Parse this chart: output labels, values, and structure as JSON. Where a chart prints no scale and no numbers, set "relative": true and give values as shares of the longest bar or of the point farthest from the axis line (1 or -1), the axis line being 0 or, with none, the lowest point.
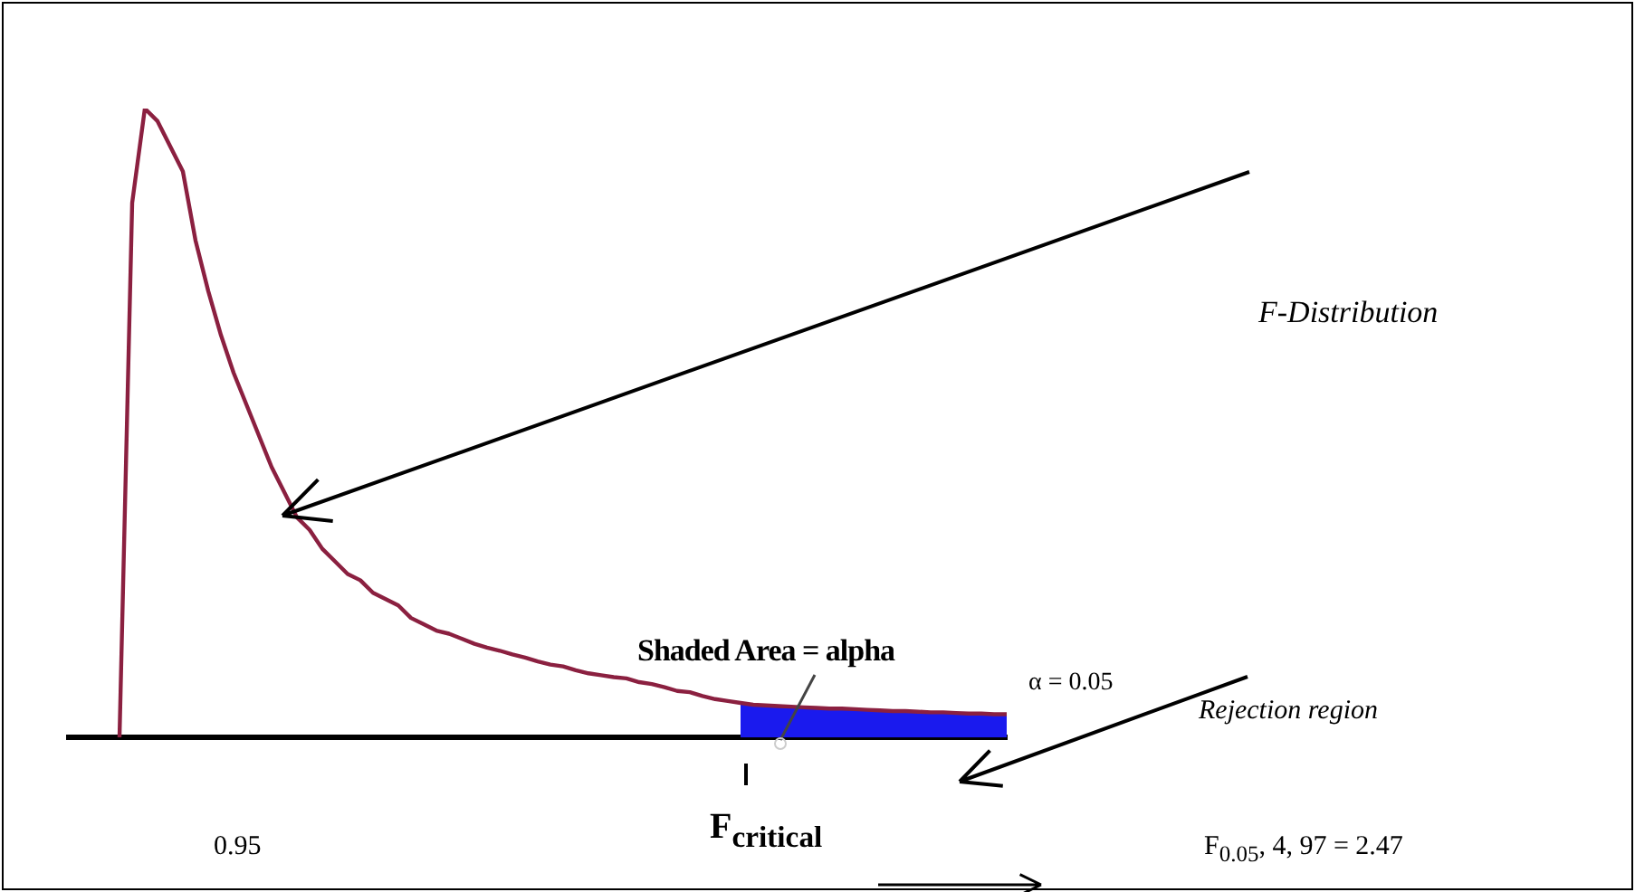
{
  "chart_data": {
    "type": "line",
    "relative": true,
    "legend": false,
    "grid": false,
    "marker": "none",
    "categories": [
      null,
      null,
      null,
      null,
      null,
      null,
      null,
      null,
      null,
      null,
      null,
      null,
      null,
      null,
      null,
      null,
      null,
      null,
      null,
      null,
      null,
      null,
      null,
      null,
      null,
      null,
      null,
      null,
      null,
      null,
      null,
      null,
      null,
      null,
      null,
      null,
      null,
      null,
      null,
      null,
      null,
      null,
      null,
      null,
      null,
      null,
      null,
      null,
      null,
      null,
      null,
      null,
      null,
      null,
      null,
      null,
      null,
      null,
      null,
      null,
      null,
      null,
      null,
      null,
      null,
      null,
      null,
      null,
      null,
      null,
      null,
      null,
      null,
      null,
      null
    ],
    "series": [
      {
        "type": "line",
        "color": "#8b2040",
        "values": [
          null,
          null,
          null,
          null,
          0,
          0.85,
          1.0,
          0.98,
          0.94,
          0.9,
          0.79,
          0.71,
          0.64,
          0.58,
          0.53,
          0.48,
          0.43,
          0.39,
          0.35,
          0.33,
          0.3,
          0.28,
          0.26,
          0.25,
          0.23,
          0.22,
          0.21,
          0.19,
          0.18,
          0.17,
          0.165,
          0.157,
          0.149,
          0.143,
          0.138,
          0.132,
          0.127,
          0.121,
          0.116,
          0.113,
          0.107,
          0.102,
          0.099,
          0.096,
          0.094,
          0.088,
          0.085,
          0.08,
          0.074,
          0.072,
          0.066,
          0.061,
          0.058,
          0.055,
          0.052,
          0.051,
          0.05,
          0.049,
          0.048,
          0.047,
          0.046,
          0.046,
          0.045,
          0.044,
          0.043,
          0.042,
          0.042,
          0.041,
          0.04,
          0.04,
          0.039,
          0.038,
          0.038,
          0.037,
          0.037
        ]
      },
      {
        "type": "area",
        "color": "#1a1aee",
        "values": [
          null,
          null,
          null,
          null,
          null,
          null,
          null,
          null,
          null,
          null,
          null,
          null,
          null,
          null,
          null,
          null,
          null,
          null,
          null,
          null,
          null,
          null,
          null,
          null,
          null,
          null,
          null,
          null,
          null,
          null,
          null,
          null,
          null,
          null,
          null,
          null,
          null,
          null,
          null,
          null,
          null,
          null,
          null,
          null,
          null,
          null,
          null,
          null,
          null,
          null,
          null,
          null,
          null,
          0.055,
          0.052,
          0.051,
          0.05,
          0.049,
          0.048,
          0.047,
          0.046,
          0.046,
          0.045,
          0.044,
          0.043,
          0.042,
          0.042,
          0.041,
          0.04,
          0.04,
          0.039,
          0.038,
          0.038,
          0.037,
          0.037
        ]
      }
    ],
    "annotations": [
      "F-Distribution",
      "Shaded Area = alpha",
      "α = 0.05",
      "Rejection region",
      "0.95",
      "F$_{critical}$",
      "F$_{0.05}$, 4, 97 = 2.47"
    ]
  }
}
